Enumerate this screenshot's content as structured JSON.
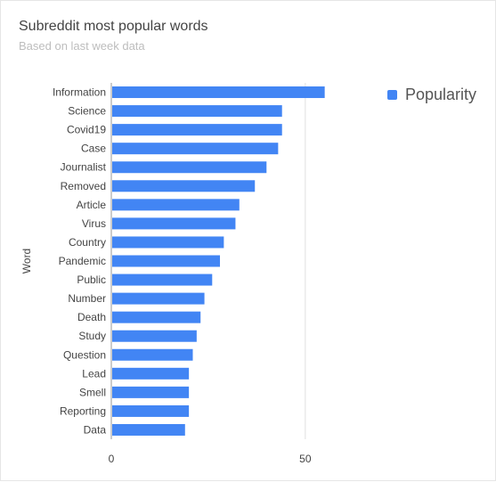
{
  "title": "Subreddit most popular words",
  "subtitle": "Based on last week data",
  "chart_data": {
    "type": "bar",
    "orientation": "horizontal",
    "title": "Subreddit most popular words",
    "subtitle": "Based on last week data",
    "ylabel": "Word",
    "xlabel": "",
    "categories": [
      "Information",
      "Science",
      "Covid19",
      "Case",
      "Journalist",
      "Removed",
      "Article",
      "Virus",
      "Country",
      "Pandemic",
      "Public",
      "Number",
      "Death",
      "Study",
      "Question",
      "Lead",
      "Smell",
      "Reporting",
      "Data"
    ],
    "series": [
      {
        "name": "Popularity",
        "color": "#4285f4",
        "values": [
          55,
          44,
          44,
          43,
          40,
          37,
          33,
          32,
          29,
          28,
          26,
          24,
          23,
          22,
          21,
          20,
          20,
          20,
          19
        ]
      }
    ],
    "xlim": [
      0,
      98
    ],
    "xticks": [
      0,
      50
    ],
    "grid": true,
    "legend": "top-right"
  }
}
